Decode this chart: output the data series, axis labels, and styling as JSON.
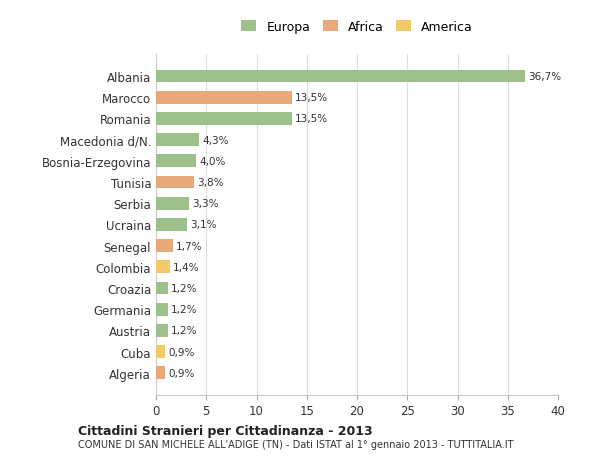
{
  "countries": [
    "Albania",
    "Marocco",
    "Romania",
    "Macedonia d/N.",
    "Bosnia-Erzegovina",
    "Tunisia",
    "Serbia",
    "Ucraina",
    "Senegal",
    "Colombia",
    "Croazia",
    "Germania",
    "Austria",
    "Cuba",
    "Algeria"
  ],
  "values": [
    36.7,
    13.5,
    13.5,
    4.3,
    4.0,
    3.8,
    3.3,
    3.1,
    1.7,
    1.4,
    1.2,
    1.2,
    1.2,
    0.9,
    0.9
  ],
  "labels": [
    "36,7%",
    "13,5%",
    "13,5%",
    "4,3%",
    "4,0%",
    "3,8%",
    "3,3%",
    "3,1%",
    "1,7%",
    "1,4%",
    "1,2%",
    "1,2%",
    "1,2%",
    "0,9%",
    "0,9%"
  ],
  "continents": [
    "Europa",
    "Africa",
    "Europa",
    "Europa",
    "Europa",
    "Africa",
    "Europa",
    "Europa",
    "Africa",
    "America",
    "Europa",
    "Europa",
    "Europa",
    "America",
    "Africa"
  ],
  "colors": {
    "Europa": "#9dc08b",
    "Africa": "#e8a87c",
    "America": "#f0c96b"
  },
  "legend_colors": {
    "Europa": "#9dc08b",
    "Africa": "#e8a87c",
    "America": "#f0c96b"
  },
  "title1": "Cittadini Stranieri per Cittadinanza - 2013",
  "title2": "COMUNE DI SAN MICHELE ALL'ADIGE (TN) - Dati ISTAT al 1° gennaio 2013 - TUTTITALIA.IT",
  "xlabel": "",
  "xlim": [
    0,
    40
  ],
  "xticks": [
    0,
    5,
    10,
    15,
    20,
    25,
    30,
    35,
    40
  ],
  "background_color": "#ffffff",
  "grid_color": "#dddddd",
  "bar_height": 0.6
}
